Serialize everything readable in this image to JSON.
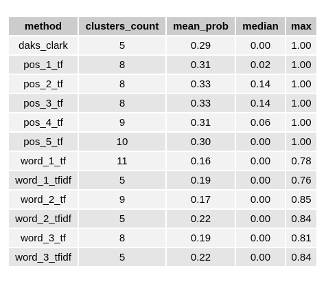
{
  "table": {
    "columns": [
      "method",
      "clusters_count",
      "mean_prob",
      "median",
      "max"
    ],
    "rows": [
      [
        "daks_clark",
        "5",
        "0.29",
        "0.00",
        "1.00"
      ],
      [
        "pos_1_tf",
        "8",
        "0.31",
        "0.02",
        "1.00"
      ],
      [
        "pos_2_tf",
        "8",
        "0.33",
        "0.14",
        "1.00"
      ],
      [
        "pos_3_tf",
        "8",
        "0.33",
        "0.14",
        "1.00"
      ],
      [
        "pos_4_tf",
        "9",
        "0.31",
        "0.06",
        "1.00"
      ],
      [
        "pos_5_tf",
        "10",
        "0.30",
        "0.00",
        "1.00"
      ],
      [
        "word_1_tf",
        "11",
        "0.16",
        "0.00",
        "0.78"
      ],
      [
        "word_1_tfidf",
        "5",
        "0.19",
        "0.00",
        "0.76"
      ],
      [
        "word_2_tf",
        "9",
        "0.17",
        "0.00",
        "0.85"
      ],
      [
        "word_2_tfidf",
        "5",
        "0.22",
        "0.00",
        "0.84"
      ],
      [
        "word_3_tf",
        "8",
        "0.19",
        "0.00",
        "0.81"
      ],
      [
        "word_3_tfidf",
        "5",
        "0.22",
        "0.00",
        "0.84"
      ]
    ]
  },
  "colors": {
    "header_bg": "#cccccc",
    "row_odd_bg": "#f2f2f2",
    "row_even_bg": "#e5e5e5"
  }
}
